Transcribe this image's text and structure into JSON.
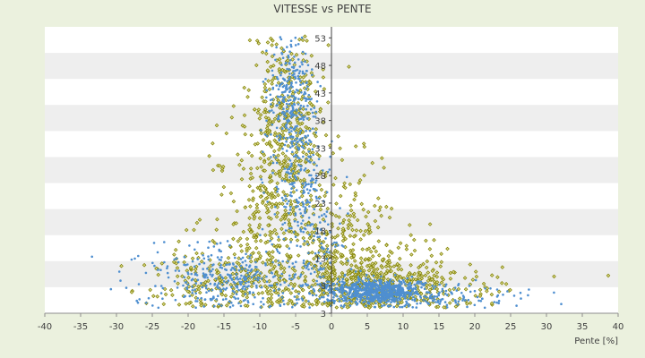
{
  "chart_data": {
    "type": "scatter",
    "title": "VITESSE vs PENTE",
    "xlabel": "Pente [%]",
    "ylabel": "",
    "xlim": [
      -40,
      40
    ],
    "ylim": [
      3,
      55
    ],
    "x_ticks": [
      -40,
      -35,
      -30,
      -25,
      -20,
      -15,
      -10,
      -5,
      0,
      5,
      10,
      15,
      20,
      25,
      30,
      35,
      40
    ],
    "y_ticks": [
      3,
      8,
      13,
      18,
      23,
      28,
      33,
      38,
      43,
      48,
      53
    ],
    "grid": "horizontal bands",
    "legend": "none",
    "series": [
      {
        "color": "#808000",
        "marker": "diamond",
        "clusters": [
          {
            "cx": -6,
            "cy": 38,
            "sx": 2.5,
            "sy": 9,
            "n": 380
          },
          {
            "cx": -8,
            "cy": 22,
            "sx": 4.5,
            "sy": 8,
            "n": 260
          },
          {
            "cx": -12,
            "cy": 9,
            "sx": 7,
            "sy": 3.5,
            "n": 320
          },
          {
            "cx": 5,
            "cy": 10,
            "sx": 5,
            "sy": 3.5,
            "n": 320
          },
          {
            "cx": 10,
            "cy": 7,
            "sx": 7,
            "sy": 2,
            "n": 260
          },
          {
            "cx": 2,
            "cy": 18,
            "sx": 3,
            "sy": 6,
            "n": 120
          }
        ]
      },
      {
        "color": "#4f8fd0",
        "marker": "dot",
        "clusters": [
          {
            "cx": -5.5,
            "cy": 42,
            "sx": 1.6,
            "sy": 6,
            "n": 300
          },
          {
            "cx": -4.5,
            "cy": 26,
            "sx": 2,
            "sy": 6,
            "n": 180
          },
          {
            "cx": -14,
            "cy": 9,
            "sx": 6,
            "sy": 3.2,
            "n": 360
          },
          {
            "cx": 6,
            "cy": 7,
            "sx": 3.5,
            "sy": 1.2,
            "n": 650
          },
          {
            "cx": 14,
            "cy": 6,
            "sx": 7,
            "sy": 1.2,
            "n": 160
          },
          {
            "cx": -2,
            "cy": 15,
            "sx": 2,
            "sy": 4,
            "n": 80
          }
        ]
      }
    ]
  }
}
